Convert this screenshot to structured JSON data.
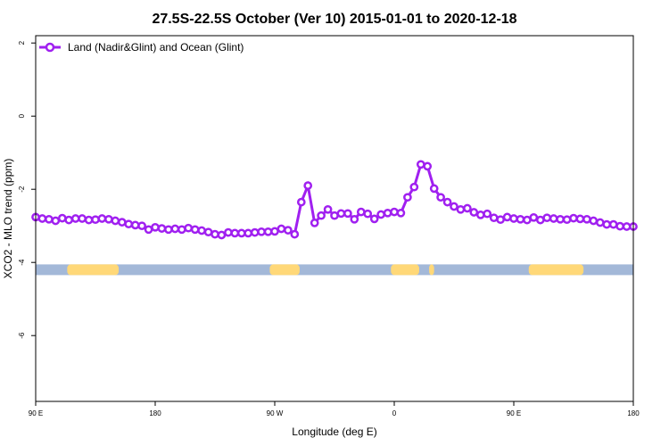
{
  "chart_data": {
    "type": "line",
    "title": "27.5S-22.5S October (Ver 10)   2015-01-01 to 2020-12-18",
    "xlabel": "Longitude (deg E)",
    "ylabel": "XCO2 - MLO trend (ppm)",
    "xlim": [
      90,
      450
    ],
    "ylim": [
      -7.8,
      2.2
    ],
    "x_ticks": [
      {
        "value": 90,
        "label": "90 E"
      },
      {
        "value": 162,
        "label": "180"
      },
      {
        "value": 234,
        "label": "90 W"
      },
      {
        "value": 306,
        "label": "0"
      },
      {
        "value": 378,
        "label": "90 E"
      },
      {
        "value": 450,
        "label": "180"
      }
    ],
    "y_ticks": [
      {
        "value": 2,
        "label": "2"
      },
      {
        "value": 0,
        "label": "0"
      },
      {
        "value": -2,
        "label": "-2"
      },
      {
        "value": -4,
        "label": "-4"
      },
      {
        "value": -6,
        "label": "-6"
      }
    ],
    "grid": false,
    "legend_position": "top-left",
    "series": [
      {
        "name": "Land (Nadir&Glint) and Ocean (Glint)",
        "color": "#a020f0",
        "x": [
          90,
          94,
          98,
          102,
          106,
          110,
          114,
          118,
          122,
          126,
          130,
          134,
          138,
          142,
          146,
          150,
          154,
          158,
          162,
          166,
          170,
          174,
          178,
          182,
          186,
          190,
          194,
          198,
          202,
          206,
          210,
          214,
          218,
          222,
          226,
          230,
          234,
          238,
          242,
          246,
          250,
          254,
          258,
          262,
          266,
          270,
          274,
          278,
          282,
          286,
          290,
          294,
          298,
          302,
          306,
          310,
          314,
          318,
          322,
          326,
          330,
          334,
          338,
          342,
          346,
          350,
          354,
          358,
          362,
          366,
          370,
          374,
          378,
          382,
          386,
          390,
          394,
          398,
          402,
          406,
          410,
          414,
          418,
          422,
          426,
          430,
          434,
          438,
          442,
          446,
          450
        ],
        "y": [
          -2.76,
          -2.8,
          -2.82,
          -2.86,
          -2.79,
          -2.84,
          -2.8,
          -2.8,
          -2.84,
          -2.83,
          -2.8,
          -2.82,
          -2.86,
          -2.9,
          -2.95,
          -2.98,
          -3.0,
          -3.1,
          -3.04,
          -3.07,
          -3.1,
          -3.08,
          -3.1,
          -3.06,
          -3.1,
          -3.13,
          -3.17,
          -3.23,
          -3.25,
          -3.18,
          -3.2,
          -3.2,
          -3.2,
          -3.18,
          -3.16,
          -3.16,
          -3.15,
          -3.08,
          -3.12,
          -3.23,
          -2.35,
          -1.9,
          -2.92,
          -2.72,
          -2.55,
          -2.72,
          -2.66,
          -2.66,
          -2.82,
          -2.62,
          -2.67,
          -2.81,
          -2.69,
          -2.65,
          -2.62,
          -2.65,
          -2.22,
          -1.94,
          -1.32,
          -1.37,
          -1.98,
          -2.22,
          -2.35,
          -2.47,
          -2.55,
          -2.52,
          -2.63,
          -2.7,
          -2.67,
          -2.78,
          -2.83,
          -2.76,
          -2.8,
          -2.82,
          -2.84,
          -2.77,
          -2.84,
          -2.78,
          -2.8,
          -2.82,
          -2.83,
          -2.79,
          -2.81,
          -2.82,
          -2.86,
          -2.91,
          -2.96,
          -2.96,
          -3.01,
          -3.02,
          -3.02
        ]
      }
    ],
    "surface_band": {
      "y": -4.2,
      "ocean_color": "#a3b8d8",
      "land_color": "#ffd878",
      "land_segments": [
        [
          109,
          140
        ],
        [
          231,
          249
        ],
        [
          304,
          321
        ],
        [
          327,
          330
        ],
        [
          387,
          420
        ]
      ]
    }
  }
}
